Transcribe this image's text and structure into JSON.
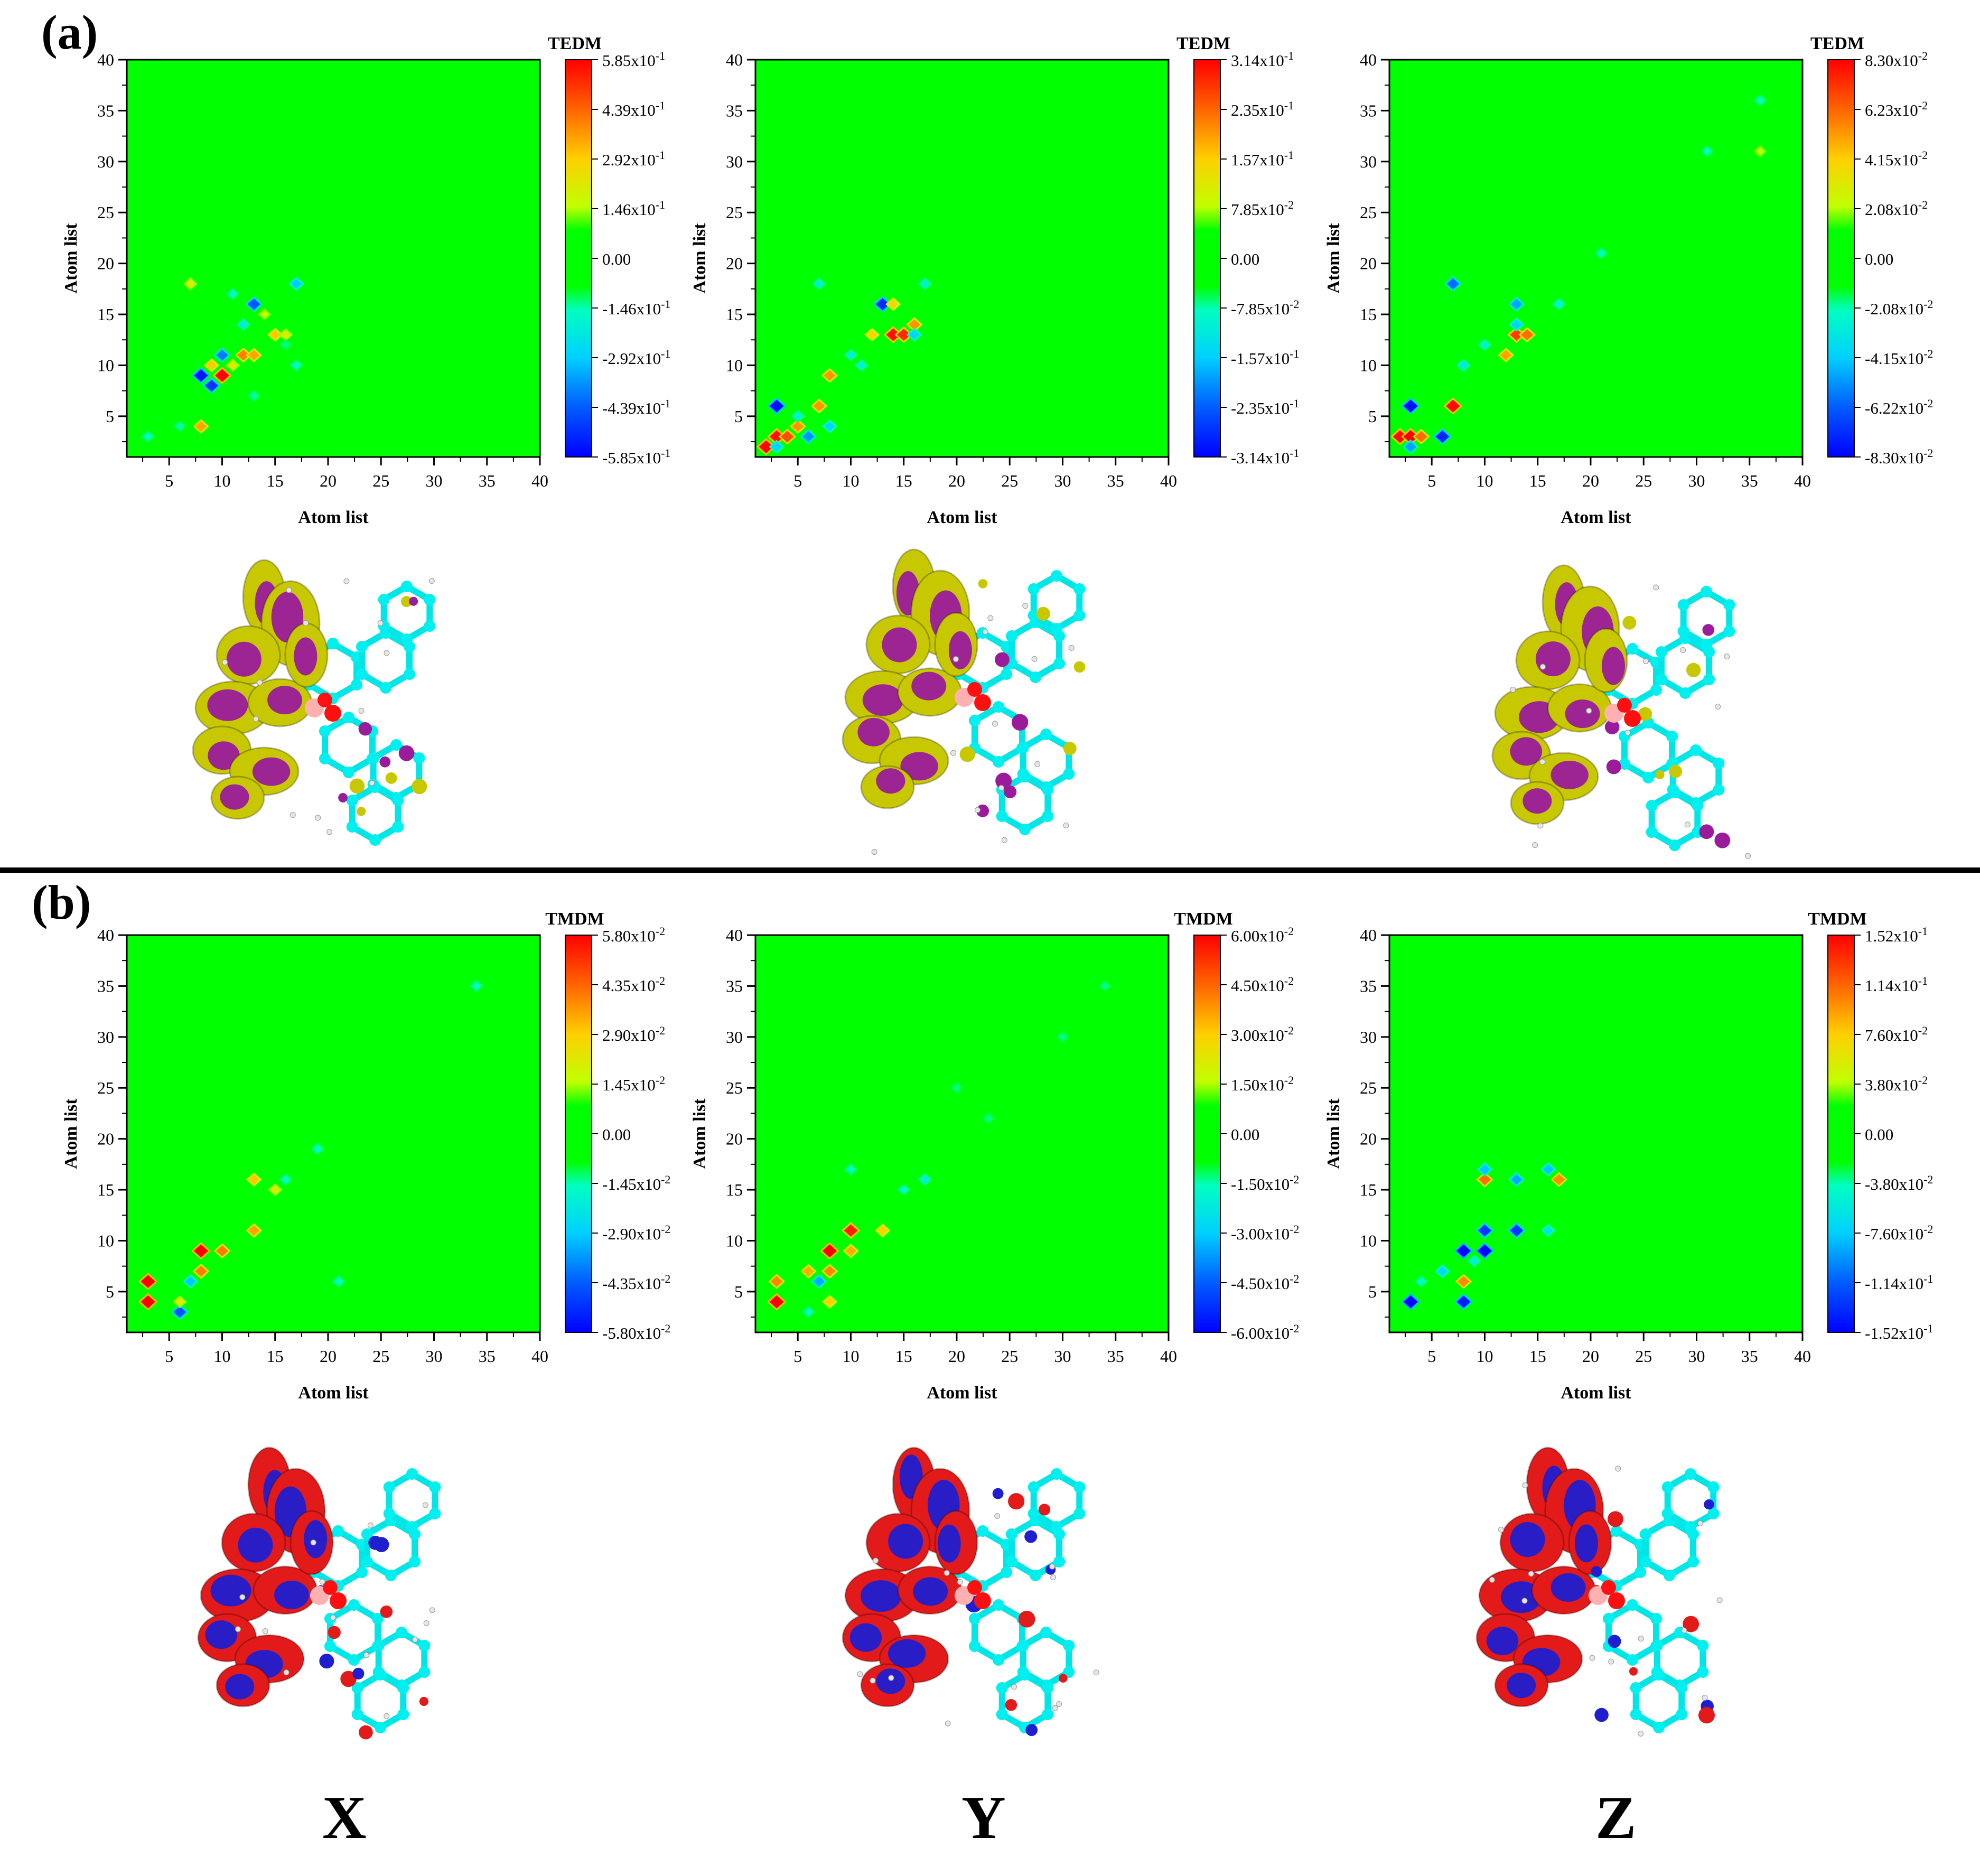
{
  "panel_labels": [
    "(a)",
    "(b)"
  ],
  "bottom_labels": [
    "X",
    "Y",
    "Z"
  ],
  "colors": {
    "background": "#00ff00",
    "positive": "#ff0000",
    "negative": "#0000ff",
    "mid": "#ffff00",
    "cyan": "#00ffff"
  },
  "chart_data": [
    {
      "type": "heatmap",
      "id": "a-x",
      "legend_title": "TEDM",
      "xlabel": "Atom list",
      "ylabel": "Atom list",
      "xlim": [
        1,
        40
      ],
      "ylim": [
        1,
        40
      ],
      "xticks": [
        "5",
        "10",
        "15",
        "20",
        "25",
        "30",
        "35",
        "40"
      ],
      "yticks": [
        "5",
        "10",
        "15",
        "20",
        "25",
        "30",
        "35",
        "40"
      ],
      "colorbar_labels": [
        "5.85x10-1",
        "4.39x10-1",
        "2.92x10-1",
        "1.46x10-1",
        "0.00",
        "-1.46x10-1",
        "-2.92x10-1",
        "-4.39x10-1",
        "-5.85x10-1"
      ],
      "scale_max": 0.585,
      "points": [
        {
          "x": 8,
          "y": 9,
          "v": -0.55
        },
        {
          "x": 9,
          "y": 8,
          "v": -0.5
        },
        {
          "x": 10,
          "y": 9,
          "v": 0.58
        },
        {
          "x": 9,
          "y": 10,
          "v": 0.3
        },
        {
          "x": 13,
          "y": 16,
          "v": -0.45
        },
        {
          "x": 17,
          "y": 18,
          "v": -0.3
        },
        {
          "x": 10,
          "y": 11,
          "v": -0.4
        },
        {
          "x": 12,
          "y": 11,
          "v": 0.4
        },
        {
          "x": 13,
          "y": 11,
          "v": 0.35
        },
        {
          "x": 15,
          "y": 13,
          "v": 0.3
        },
        {
          "x": 16,
          "y": 13,
          "v": 0.2
        },
        {
          "x": 14,
          "y": 15,
          "v": 0.15
        },
        {
          "x": 8,
          "y": 4,
          "v": 0.35
        },
        {
          "x": 11,
          "y": 10,
          "v": 0.2
        },
        {
          "x": 7,
          "y": 18,
          "v": 0.2
        },
        {
          "x": 12,
          "y": 14,
          "v": -0.2
        },
        {
          "x": 3,
          "y": 3,
          "v": -0.15
        },
        {
          "x": 6,
          "y": 4,
          "v": -0.12
        },
        {
          "x": 17,
          "y": 10,
          "v": -0.15
        },
        {
          "x": 11,
          "y": 17,
          "v": -0.15
        },
        {
          "x": 13,
          "y": 7,
          "v": -0.12
        },
        {
          "x": 16,
          "y": 12,
          "v": -0.1
        }
      ]
    },
    {
      "type": "heatmap",
      "id": "a-y",
      "legend_title": "TEDM",
      "xlabel": "Atom list",
      "ylabel": "Atom list",
      "xlim": [
        1,
        40
      ],
      "ylim": [
        1,
        40
      ],
      "xticks": [
        "5",
        "10",
        "15",
        "20",
        "25",
        "30",
        "35",
        "40"
      ],
      "yticks": [
        "5",
        "10",
        "15",
        "20",
        "25",
        "30",
        "35",
        "40"
      ],
      "colorbar_labels": [
        "3.14x10-1",
        "2.35x10-1",
        "1.57x10-1",
        "7.85x10-2",
        "0.00",
        "-7.85x10-2",
        "-1.57x10-1",
        "-2.35x10-1",
        "-3.14x10-1"
      ],
      "scale_max": 0.314,
      "points": [
        {
          "x": 2,
          "y": 2,
          "v": 0.31
        },
        {
          "x": 3,
          "y": 3,
          "v": 0.3
        },
        {
          "x": 4,
          "y": 3,
          "v": 0.25
        },
        {
          "x": 5,
          "y": 4,
          "v": 0.2
        },
        {
          "x": 3,
          "y": 6,
          "v": -0.3
        },
        {
          "x": 6,
          "y": 3,
          "v": -0.2
        },
        {
          "x": 13,
          "y": 16,
          "v": -0.28
        },
        {
          "x": 14,
          "y": 13,
          "v": 0.3
        },
        {
          "x": 15,
          "y": 13,
          "v": 0.28
        },
        {
          "x": 16,
          "y": 14,
          "v": 0.2
        },
        {
          "x": 8,
          "y": 9,
          "v": 0.2
        },
        {
          "x": 8,
          "y": 4,
          "v": -0.15
        },
        {
          "x": 7,
          "y": 6,
          "v": 0.2
        },
        {
          "x": 12,
          "y": 13,
          "v": 0.15
        },
        {
          "x": 16,
          "y": 13,
          "v": -0.15
        },
        {
          "x": 10,
          "y": 11,
          "v": -0.1
        },
        {
          "x": 7,
          "y": 18,
          "v": -0.1
        },
        {
          "x": 17,
          "y": 18,
          "v": -0.1
        },
        {
          "x": 14,
          "y": 16,
          "v": 0.15
        },
        {
          "x": 3,
          "y": 2,
          "v": -0.15
        },
        {
          "x": 11,
          "y": 10,
          "v": -0.1
        },
        {
          "x": 5,
          "y": 5,
          "v": -0.1
        }
      ]
    },
    {
      "type": "heatmap",
      "id": "a-z",
      "legend_title": "TEDM",
      "xlabel": "Atom list",
      "ylabel": "Atom list",
      "xlim": [
        1,
        40
      ],
      "ylim": [
        1,
        40
      ],
      "xticks": [
        "5",
        "10",
        "15",
        "20",
        "25",
        "30",
        "35",
        "40"
      ],
      "yticks": [
        "5",
        "10",
        "15",
        "20",
        "25",
        "30",
        "35",
        "40"
      ],
      "colorbar_labels": [
        "8.30x10-2",
        "6.23x10-2",
        "4.15x10-2",
        "2.08x10-2",
        "0.00",
        "-2.08x10-2",
        "-4.15x10-2",
        "-6.22x10-2",
        "-8.30x10-2"
      ],
      "scale_max": 0.083,
      "points": [
        {
          "x": 2,
          "y": 3,
          "v": 0.08
        },
        {
          "x": 3,
          "y": 3,
          "v": 0.083
        },
        {
          "x": 4,
          "y": 3,
          "v": 0.06
        },
        {
          "x": 3,
          "y": 6,
          "v": -0.08
        },
        {
          "x": 6,
          "y": 3,
          "v": -0.075
        },
        {
          "x": 7,
          "y": 6,
          "v": 0.08
        },
        {
          "x": 7,
          "y": 18,
          "v": -0.06
        },
        {
          "x": 13,
          "y": 13,
          "v": 0.07
        },
        {
          "x": 14,
          "y": 13,
          "v": 0.06
        },
        {
          "x": 12,
          "y": 11,
          "v": 0.05
        },
        {
          "x": 13,
          "y": 16,
          "v": -0.05
        },
        {
          "x": 13,
          "y": 14,
          "v": -0.04
        },
        {
          "x": 21,
          "y": 21,
          "v": -0.02
        },
        {
          "x": 31,
          "y": 31,
          "v": -0.02
        },
        {
          "x": 36,
          "y": 36,
          "v": -0.02
        },
        {
          "x": 36,
          "y": 31,
          "v": 0.02
        },
        {
          "x": 8,
          "y": 10,
          "v": -0.03
        },
        {
          "x": 10,
          "y": 12,
          "v": -0.025
        },
        {
          "x": 3,
          "y": 2,
          "v": -0.05
        },
        {
          "x": 17,
          "y": 16,
          "v": -0.025
        }
      ]
    },
    {
      "type": "heatmap",
      "id": "b-x",
      "legend_title": "TMDM",
      "xlabel": "Atom list",
      "ylabel": "Atom list",
      "xlim": [
        1,
        40
      ],
      "ylim": [
        1,
        40
      ],
      "xticks": [
        "5",
        "10",
        "15",
        "20",
        "25",
        "30",
        "35",
        "40"
      ],
      "yticks": [
        "5",
        "10",
        "15",
        "20",
        "25",
        "30",
        "35",
        "40"
      ],
      "colorbar_labels": [
        "5.80x10-2",
        "4.35x10-2",
        "2.90x10-2",
        "1.45x10-2",
        "0.00",
        "-1.45x10-2",
        "-2.90x10-2",
        "-4.35x10-2",
        "-5.80x10-2"
      ],
      "scale_max": 0.058,
      "points": [
        {
          "x": 3,
          "y": 6,
          "v": 0.058
        },
        {
          "x": 3,
          "y": 4,
          "v": 0.058
        },
        {
          "x": 8,
          "y": 9,
          "v": 0.058
        },
        {
          "x": 8,
          "y": 7,
          "v": 0.04
        },
        {
          "x": 10,
          "y": 9,
          "v": 0.04
        },
        {
          "x": 13,
          "y": 11,
          "v": 0.035
        },
        {
          "x": 13,
          "y": 16,
          "v": 0.03
        },
        {
          "x": 15,
          "y": 15,
          "v": 0.02
        },
        {
          "x": 6,
          "y": 3,
          "v": -0.045
        },
        {
          "x": 7,
          "y": 6,
          "v": -0.03
        },
        {
          "x": 6,
          "y": 4,
          "v": 0.02
        },
        {
          "x": 16,
          "y": 16,
          "v": -0.015
        },
        {
          "x": 19,
          "y": 19,
          "v": -0.015
        },
        {
          "x": 21,
          "y": 6,
          "v": -0.015
        },
        {
          "x": 34,
          "y": 35,
          "v": -0.015
        }
      ]
    },
    {
      "type": "heatmap",
      "id": "b-y",
      "legend_title": "TMDM",
      "xlabel": "Atom list",
      "ylabel": "Atom list",
      "xlim": [
        1,
        40
      ],
      "ylim": [
        1,
        40
      ],
      "xticks": [
        "5",
        "10",
        "15",
        "20",
        "25",
        "30",
        "35",
        "40"
      ],
      "yticks": [
        "5",
        "10",
        "15",
        "20",
        "25",
        "30",
        "35",
        "40"
      ],
      "colorbar_labels": [
        "6.00x10-2",
        "4.50x10-2",
        "3.00x10-2",
        "1.50x10-2",
        "0.00",
        "-1.50x10-2",
        "-3.00x10-2",
        "-4.50x10-2",
        "-6.00x10-2"
      ],
      "scale_max": 0.06,
      "points": [
        {
          "x": 3,
          "y": 4,
          "v": 0.06
        },
        {
          "x": 3,
          "y": 6,
          "v": 0.04
        },
        {
          "x": 8,
          "y": 9,
          "v": 0.06
        },
        {
          "x": 10,
          "y": 11,
          "v": 0.055
        },
        {
          "x": 8,
          "y": 7,
          "v": 0.04
        },
        {
          "x": 10,
          "y": 9,
          "v": 0.035
        },
        {
          "x": 6,
          "y": 7,
          "v": 0.035
        },
        {
          "x": 8,
          "y": 4,
          "v": 0.03
        },
        {
          "x": 7,
          "y": 6,
          "v": -0.035
        },
        {
          "x": 13,
          "y": 11,
          "v": 0.03
        },
        {
          "x": 17,
          "y": 16,
          "v": -0.02
        },
        {
          "x": 15,
          "y": 15,
          "v": -0.015
        },
        {
          "x": 10,
          "y": 17,
          "v": -0.015
        },
        {
          "x": 6,
          "y": 3,
          "v": -0.015
        },
        {
          "x": 20,
          "y": 25,
          "v": -0.01
        },
        {
          "x": 23,
          "y": 22,
          "v": -0.01
        },
        {
          "x": 30,
          "y": 30,
          "v": -0.01
        },
        {
          "x": 34,
          "y": 35,
          "v": -0.01
        }
      ]
    },
    {
      "type": "heatmap",
      "id": "b-z",
      "legend_title": "TMDM",
      "xlabel": "Atom list",
      "ylabel": "Atom list",
      "xlim": [
        1,
        40
      ],
      "ylim": [
        1,
        40
      ],
      "xticks": [
        "5",
        "10",
        "15",
        "20",
        "25",
        "30",
        "35",
        "40"
      ],
      "yticks": [
        "5",
        "10",
        "15",
        "20",
        "25",
        "30",
        "35",
        "40"
      ],
      "colorbar_labels": [
        "1.52x10-1",
        "1.14x10-1",
        "7.60x10-2",
        "3.80x10-2",
        "0.00",
        "-3.80x10-2",
        "-7.60x10-2",
        "-1.14x10-1",
        "-1.52x10-1"
      ],
      "scale_max": 0.152,
      "points": [
        {
          "x": 3,
          "y": 4,
          "v": -0.15
        },
        {
          "x": 8,
          "y": 9,
          "v": -0.15
        },
        {
          "x": 10,
          "y": 9,
          "v": -0.15
        },
        {
          "x": 8,
          "y": 4,
          "v": -0.14
        },
        {
          "x": 10,
          "y": 11,
          "v": -0.13
        },
        {
          "x": 13,
          "y": 11,
          "v": -0.13
        },
        {
          "x": 8,
          "y": 6,
          "v": 0.1
        },
        {
          "x": 10,
          "y": 16,
          "v": 0.11
        },
        {
          "x": 17,
          "y": 16,
          "v": 0.1
        },
        {
          "x": 10,
          "y": 17,
          "v": -0.08
        },
        {
          "x": 13,
          "y": 16,
          "v": -0.09
        },
        {
          "x": 16,
          "y": 17,
          "v": -0.08
        },
        {
          "x": 6,
          "y": 7,
          "v": -0.07
        },
        {
          "x": 16,
          "y": 11,
          "v": -0.06
        },
        {
          "x": 4,
          "y": 6,
          "v": -0.04
        },
        {
          "x": 9,
          "y": 8,
          "v": -0.05
        }
      ]
    }
  ],
  "isosurfaces": [
    {
      "id": "a-x-mol",
      "colors": [
        "#c8c800",
        "#9b1c9b"
      ]
    },
    {
      "id": "a-y-mol",
      "colors": [
        "#c8c800",
        "#9b1c9b"
      ]
    },
    {
      "id": "a-z-mol",
      "colors": [
        "#c8c800",
        "#9b1c9b"
      ]
    },
    {
      "id": "b-x-mol",
      "colors": [
        "#e31a1a",
        "#1f1fcf"
      ]
    },
    {
      "id": "b-y-mol",
      "colors": [
        "#e31a1a",
        "#1f1fcf"
      ]
    },
    {
      "id": "b-z-mol",
      "colors": [
        "#e31a1a",
        "#1f1fcf"
      ]
    }
  ]
}
